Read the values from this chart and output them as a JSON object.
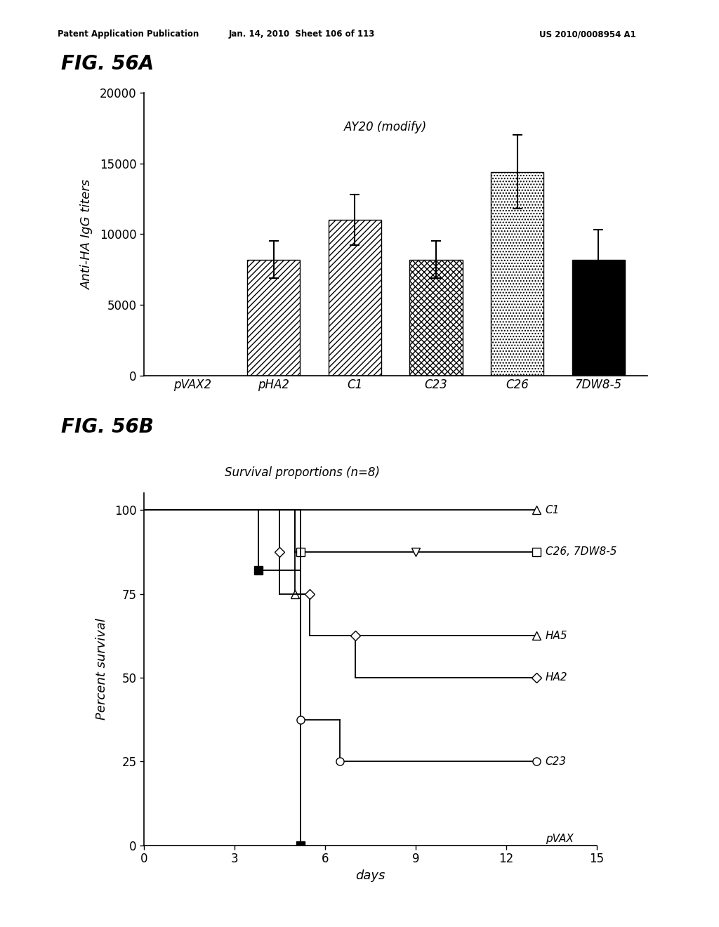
{
  "header_left": "Patent Application Publication",
  "header_mid": "Jan. 14, 2010  Sheet 106 of 113",
  "header_right": "US 2010/0008954 A1",
  "fig_a_label": "FIG. 56A",
  "fig_b_label": "FIG. 56B",
  "bar_categories": [
    "pVAX2",
    "pHA2",
    "C1",
    "C23",
    "C26",
    "7DW8-5"
  ],
  "bar_values": [
    0,
    8200,
    11000,
    8200,
    14400,
    8200
  ],
  "bar_errors": [
    0,
    1300,
    1800,
    1300,
    2600,
    2100
  ],
  "bar_annotation": "AY20 (modify)",
  "ylabel_a": "Anti-HA IgG titers",
  "ylim_a": [
    0,
    20000
  ],
  "yticks_a": [
    0,
    5000,
    10000,
    15000,
    20000
  ],
  "fig_b_title": "Survival proportions (n=8)",
  "ylabel_b": "Percent survival",
  "xlabel_b": "days",
  "xlim_b": [
    0,
    15
  ],
  "xticks_b": [
    0,
    3,
    6,
    9,
    12,
    15
  ],
  "ylim_b": [
    0,
    100
  ],
  "yticks_b": [
    0,
    25,
    50,
    75,
    100
  ],
  "background_color": "#ffffff"
}
